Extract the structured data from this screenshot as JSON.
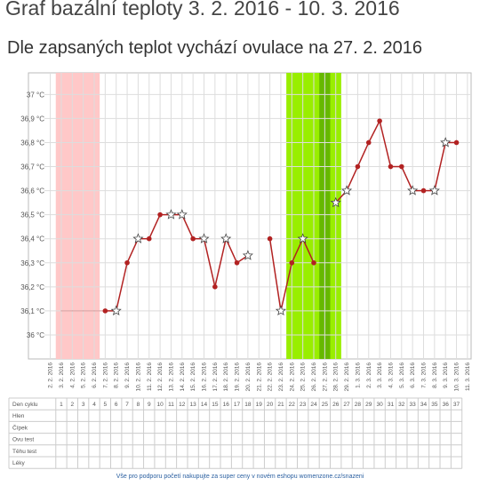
{
  "chart_data": {
    "type": "line",
    "title": "Graf bazální teploty 3. 2. 2016 - 10. 3. 2016",
    "subtitle": "Dle zapsaných teplot vychází ovulace na 27. 2. 2016",
    "categories": [
      "2. 2. 2016",
      "3. 2. 2016",
      "4. 2. 2016",
      "5. 2. 2016",
      "6. 2. 2016",
      "7. 2. 2016",
      "8. 2. 2016",
      "9. 2. 2016",
      "10. 2. 2016",
      "11. 2. 2016",
      "12. 2. 2016",
      "13. 2. 2016",
      "14. 2. 2016",
      "15. 2. 2016",
      "16. 2. 2016",
      "17. 2. 2016",
      "18. 2. 2016",
      "19. 2. 2016",
      "20. 2. 2016",
      "21. 2. 2016",
      "22. 2. 2016",
      "23. 2. 2016",
      "24. 2. 2016",
      "25. 2. 2016",
      "26. 2. 2016",
      "27. 2. 2016",
      "28. 2. 2016",
      "29. 2. 2016",
      "1. 3. 2016",
      "2. 3. 2016",
      "3. 3. 2016",
      "4. 3. 2016",
      "5. 3. 2016",
      "6. 3. 2016",
      "7. 3. 2016",
      "8. 3. 2016",
      "9. 3. 2016",
      "10. 3. 2016",
      "11. 3. 2016"
    ],
    "values": [
      null,
      36.1,
      36.1,
      36.1,
      36.1,
      36.1,
      36.1,
      36.3,
      36.4,
      36.4,
      36.5,
      36.5,
      36.5,
      36.4,
      36.4,
      36.2,
      36.4,
      36.3,
      36.33,
      null,
      36.4,
      36.1,
      36.3,
      36.4,
      36.3,
      null,
      36.55,
      36.6,
      36.7,
      36.8,
      36.89,
      36.7,
      36.7,
      36.6,
      36.6,
      36.6,
      36.8,
      36.8,
      null
    ],
    "markers": [
      null,
      "none",
      "none",
      "none",
      "none",
      "dot",
      "star",
      "dot",
      "star",
      "dot",
      "dot",
      "star",
      "star",
      "dot",
      "star",
      "dot",
      "star",
      "dot",
      "star",
      null,
      "dot",
      "star",
      "dot",
      "star",
      "dot",
      null,
      "star",
      "star",
      "dot",
      "dot",
      "dot",
      "dot",
      "dot",
      "star",
      "dot",
      "star",
      "star",
      "dot",
      null
    ],
    "color": "#b22222",
    "faint_color": "#d9a0a0",
    "bands": [
      {
        "from": "3. 2. 2016",
        "to": "6. 2. 2016",
        "color": "#ffc8c8"
      },
      {
        "from": "24. 2. 2016",
        "to": "28. 2. 2016",
        "color": "#99ee00"
      },
      {
        "from": "27. 2. 2016",
        "to": "27. 2. 2016",
        "color": "#66b800"
      }
    ],
    "ylim": [
      35.9,
      37.09
    ],
    "yticks": [
      {
        "value": 36,
        "label": "36 °C"
      },
      {
        "value": 36.1,
        "label": "36,1 °C"
      },
      {
        "value": 36.2,
        "label": "36,2 °C"
      },
      {
        "value": 36.3,
        "label": "36,3 °C"
      },
      {
        "value": 36.4,
        "label": "36,4 °C"
      },
      {
        "value": 36.5,
        "label": "36,5 °C"
      },
      {
        "value": 36.6,
        "label": "36,6 °C"
      },
      {
        "value": 36.7,
        "label": "36,7 °C"
      },
      {
        "value": 36.8,
        "label": "36,8 °C"
      },
      {
        "value": 36.9,
        "label": "36,9 °C"
      },
      {
        "value": 37,
        "label": "37 °C"
      }
    ],
    "grid": true
  },
  "table": {
    "row_labels": [
      "Den cyklu",
      "Hlen",
      "Čípek",
      "Ovu test",
      "Těhu test",
      "Léky"
    ],
    "cycle_days": [
      1,
      2,
      3,
      4,
      5,
      6,
      7,
      8,
      9,
      10,
      11,
      12,
      13,
      14,
      15,
      16,
      17,
      18,
      19,
      20,
      21,
      22,
      23,
      24,
      25,
      26,
      27,
      28,
      29,
      30,
      31,
      32,
      33,
      34,
      35,
      36,
      37
    ]
  },
  "footer": "Vše pro podporu početí nakupujte za super ceny v novém eshopu womenzone.cz/snazeni"
}
